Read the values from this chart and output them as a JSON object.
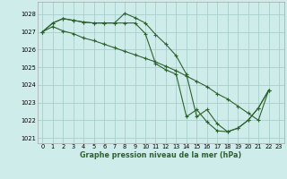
{
  "title": "Graphe pression niveau de la mer (hPa)",
  "background_color": "#ceecea",
  "grid_color": "#aacfcb",
  "line_color": "#2d622d",
  "xlim": [
    -0.5,
    23.5
  ],
  "ylim": [
    1020.7,
    1028.7
  ],
  "yticks": [
    1021,
    1022,
    1023,
    1024,
    1025,
    1026,
    1027,
    1028
  ],
  "xticks": [
    0,
    1,
    2,
    3,
    4,
    5,
    6,
    7,
    8,
    9,
    10,
    11,
    12,
    13,
    14,
    15,
    16,
    17,
    18,
    19,
    20,
    21,
    22,
    23
  ],
  "xlabel_fontsize": 5.8,
  "tick_fontsize": 4.8,
  "series": [
    {
      "x": [
        0,
        1,
        2,
        3,
        4,
        5,
        6,
        7,
        8,
        9,
        10,
        11,
        12,
        13,
        14,
        15,
        16,
        17,
        18,
        19,
        20,
        21,
        22
      ],
      "y": [
        1027.0,
        1027.5,
        1027.75,
        1027.65,
        1027.55,
        1027.5,
        1027.5,
        1027.5,
        1028.05,
        1027.8,
        1027.5,
        1026.85,
        1026.3,
        1025.65,
        1024.6,
        1022.2,
        1022.6,
        1021.8,
        1021.35,
        1021.55,
        1022.0,
        1022.7,
        1023.7
      ]
    },
    {
      "x": [
        0,
        1,
        2,
        3,
        4,
        5,
        6,
        7,
        8,
        9,
        10,
        11,
        12,
        13,
        14,
        15,
        16,
        17,
        18,
        19,
        20,
        21,
        22
      ],
      "y": [
        1027.0,
        1027.5,
        1027.75,
        1027.65,
        1027.55,
        1027.5,
        1027.5,
        1027.5,
        1027.5,
        1027.5,
        1026.9,
        1025.2,
        1024.85,
        1024.6,
        1022.2,
        1022.6,
        1021.9,
        1021.4,
        1021.35,
        1021.55,
        1022.0,
        1022.7,
        1023.7
      ]
    },
    {
      "x": [
        0,
        1,
        2,
        3,
        4,
        5,
        6,
        7,
        8,
        9,
        10,
        11,
        12,
        13,
        14,
        15,
        16,
        17,
        18,
        19,
        20,
        21,
        22
      ],
      "y": [
        1027.0,
        1027.3,
        1027.05,
        1026.9,
        1026.65,
        1026.5,
        1026.3,
        1026.1,
        1025.9,
        1025.7,
        1025.5,
        1025.3,
        1025.05,
        1024.8,
        1024.5,
        1024.2,
        1023.9,
        1023.5,
        1023.2,
        1022.8,
        1022.4,
        1022.0,
        1023.7
      ]
    }
  ]
}
